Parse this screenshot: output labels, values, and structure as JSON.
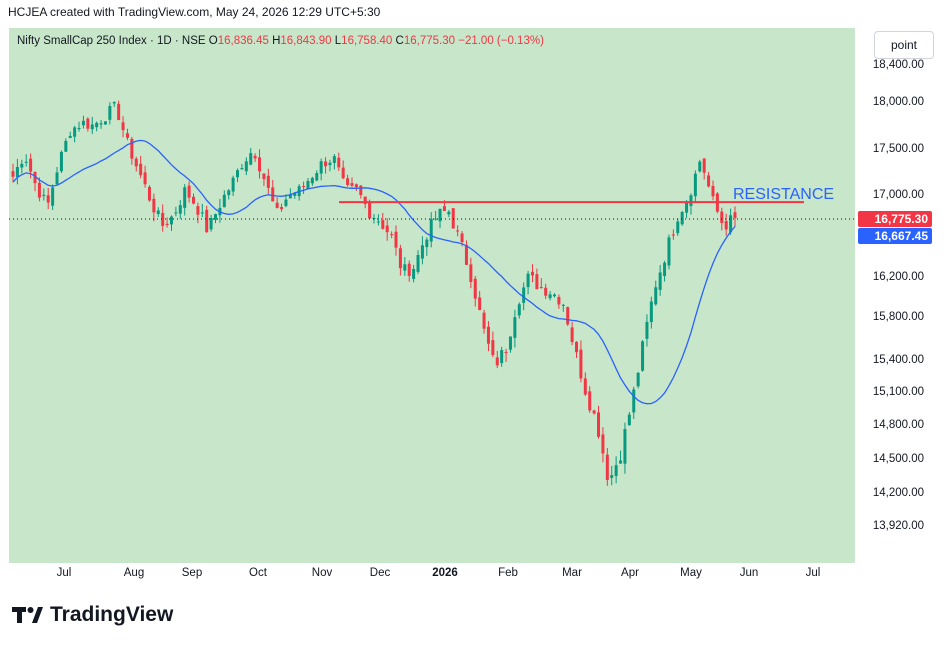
{
  "header": {
    "text": "HCJEA created with TradingView.com, May 24, 2026 12:29 UTC+5:30"
  },
  "legend": {
    "symbol": "Nifty SmallCap 250 Index · 1D · NSE",
    "o_label": "O",
    "o_value": "16,836.45",
    "h_label": "H",
    "h_value": "16,843.90",
    "l_label": "L",
    "l_value": "16,758.40",
    "c_label": "C",
    "c_value": "16,775.30",
    "change": "−21.00 (−0.13%)"
  },
  "scale_button": "point",
  "annotation": {
    "text": "RESISTANCE",
    "color": "#2962ff"
  },
  "price_tags": [
    {
      "value": "16,775.30",
      "color": "#f23645"
    },
    {
      "value": "16,667.45",
      "color": "#2962ff"
    }
  ],
  "brand": {
    "name": "TradingView",
    "icon": "tradingview-logo-icon"
  },
  "colors": {
    "background": "#c8e6c9",
    "up": "#089981",
    "down": "#f23645",
    "ma": "#2962ff",
    "resistance": "#f23645"
  },
  "chart_data": {
    "type": "candlestick",
    "title": "",
    "x_labels": [
      "Jul",
      "Aug",
      "Sep",
      "Oct",
      "Nov",
      "Dec",
      "2026",
      "Feb",
      "Mar",
      "Apr",
      "May",
      "Jun",
      "Jul"
    ],
    "y_ticks": [
      "18,400.00",
      "18,000.00",
      "17,500.00",
      "17,000.00",
      "16,200.00",
      "15,800.00",
      "15,400.00",
      "15,100.00",
      "14,800.00",
      "14,500.00",
      "14,200.00",
      "13,920.00"
    ],
    "last_close": 16775.3,
    "ma_last": 16667.45,
    "resistance_level": 16930,
    "series_close": [
      {
        "date": "Jul",
        "close": 17200
      },
      {
        "date": "Jul",
        "close": 17450
      },
      {
        "date": "Jul",
        "close": 17100
      },
      {
        "date": "Jul",
        "close": 16880
      },
      {
        "date": "Jul",
        "close": 17350
      },
      {
        "date": "Jul",
        "close": 17700
      },
      {
        "date": "Jul",
        "close": 17780
      },
      {
        "date": "Jul",
        "close": 17750
      },
      {
        "date": "Jul",
        "close": 17850
      },
      {
        "date": "Jul",
        "close": 17950
      },
      {
        "date": "Aug",
        "close": 17550
      },
      {
        "date": "Aug",
        "close": 17250
      },
      {
        "date": "Aug",
        "close": 16950
      },
      {
        "date": "Aug",
        "close": 16700
      },
      {
        "date": "Aug",
        "close": 16800
      },
      {
        "date": "Aug",
        "close": 17050
      },
      {
        "date": "Aug",
        "close": 16900
      },
      {
        "date": "Sep",
        "close": 16650
      },
      {
        "date": "Sep",
        "close": 16900
      },
      {
        "date": "Sep",
        "close": 17100
      },
      {
        "date": "Sep",
        "close": 17350
      },
      {
        "date": "Sep",
        "close": 17500
      },
      {
        "date": "Oct",
        "close": 17150
      },
      {
        "date": "Oct",
        "close": 16800
      },
      {
        "date": "Oct",
        "close": 17000
      },
      {
        "date": "Oct",
        "close": 17050
      },
      {
        "date": "Oct",
        "close": 17200
      },
      {
        "date": "Oct",
        "close": 17350
      },
      {
        "date": "Oct",
        "close": 17400
      },
      {
        "date": "Nov",
        "close": 17050
      },
      {
        "date": "Nov",
        "close": 17050
      },
      {
        "date": "Nov",
        "close": 16850
      },
      {
        "date": "Nov",
        "close": 16750
      },
      {
        "date": "Dec",
        "close": 16600
      },
      {
        "date": "Dec",
        "close": 16250
      },
      {
        "date": "Dec",
        "close": 16300
      },
      {
        "date": "Dec",
        "close": 16600
      },
      {
        "date": "Dec",
        "close": 16800
      },
      {
        "date": "Dec",
        "close": 16850
      },
      {
        "date": "2026",
        "close": 16550
      },
      {
        "date": "2026",
        "close": 16200
      },
      {
        "date": "2026",
        "close": 15700
      },
      {
        "date": "2026",
        "close": 15350
      },
      {
        "date": "2026",
        "close": 15500
      },
      {
        "date": "Feb",
        "close": 15950
      },
      {
        "date": "Feb",
        "close": 16200
      },
      {
        "date": "Feb",
        "close": 16100
      },
      {
        "date": "Feb",
        "close": 16050
      },
      {
        "date": "Mar",
        "close": 15950
      },
      {
        "date": "Mar",
        "close": 15500
      },
      {
        "date": "Mar",
        "close": 15100
      },
      {
        "date": "Mar",
        "close": 14800
      },
      {
        "date": "Mar",
        "close": 14300
      },
      {
        "date": "Apr",
        "close": 14550
      },
      {
        "date": "Apr",
        "close": 15000
      },
      {
        "date": "Apr",
        "close": 15550
      },
      {
        "date": "Apr",
        "close": 16100
      },
      {
        "date": "Apr",
        "close": 16450
      },
      {
        "date": "Apr",
        "close": 16800
      },
      {
        "date": "May",
        "close": 17000
      },
      {
        "date": "May",
        "close": 17400
      },
      {
        "date": "May",
        "close": 16950
      },
      {
        "date": "May",
        "close": 16700
      },
      {
        "date": "May",
        "close": 16775
      }
    ]
  }
}
